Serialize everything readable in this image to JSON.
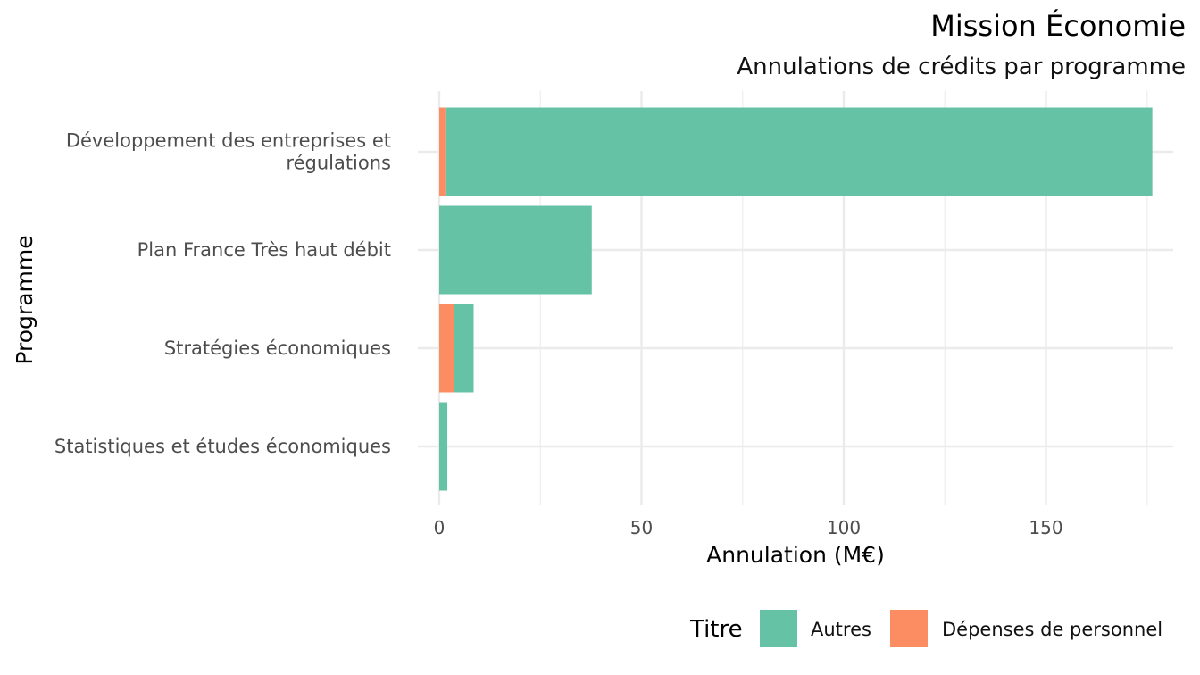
{
  "chart_data": {
    "type": "bar",
    "orientation": "horizontal",
    "stacked": true,
    "title": "Mission Économie",
    "subtitle": "Annulations de crédits par programme",
    "xlabel": "Annulation (M€)",
    "ylabel": "Programme",
    "xlim": [
      0,
      182
    ],
    "x_ticks": [
      0,
      50,
      100,
      150
    ],
    "grid": true,
    "legend_position": "bottom-right",
    "legend_title": "Titre",
    "categories": [
      [
        "Développement des entreprises et",
        "régulations"
      ],
      [
        "Plan France Très haut débit"
      ],
      [
        "Stratégies économiques"
      ],
      [
        "Statistiques et études économiques"
      ]
    ],
    "series": [
      {
        "name": "Dépenses de personnel",
        "color": "#fc8d62",
        "values": [
          1.5,
          0,
          3.7,
          0
        ]
      },
      {
        "name": "Autres",
        "color": "#66c2a5",
        "values": [
          174.8,
          37.7,
          4.8,
          2.0
        ]
      }
    ],
    "legend_order": [
      "Autres",
      "Dépenses de personnel"
    ]
  }
}
